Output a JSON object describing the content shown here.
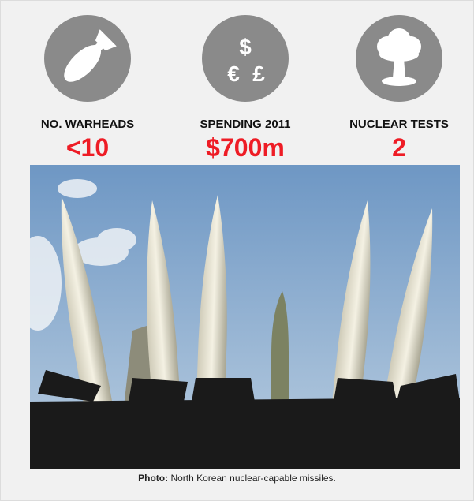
{
  "stats": [
    {
      "label": "NO. WARHEADS",
      "value": "<10"
    },
    {
      "label": "SPENDING 2011",
      "value": "$700m",
      "symbols": [
        "$",
        "€",
        "£"
      ]
    },
    {
      "label": "NUCLEAR TESTS",
      "value": "2"
    }
  ],
  "caption": {
    "lead": "Photo:",
    "text": "North Korean nuclear-capable missiles."
  }
}
